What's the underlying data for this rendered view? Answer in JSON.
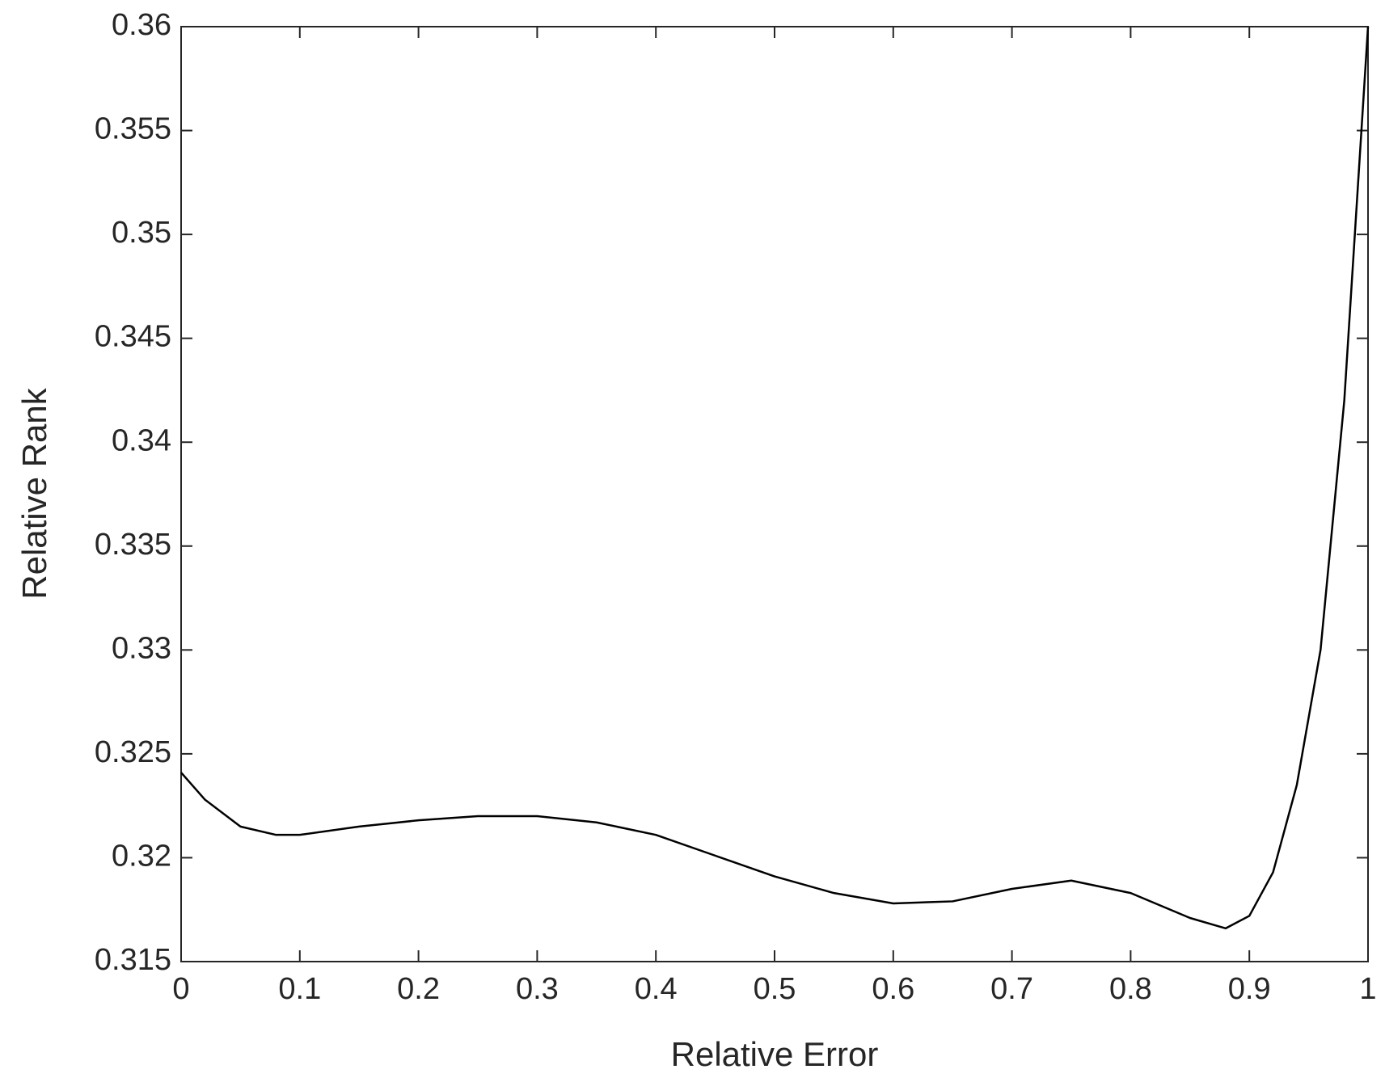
{
  "chart_data": {
    "type": "line",
    "xlabel": "Relative Error",
    "ylabel": "Relative Rank",
    "x": [
      0,
      0.02,
      0.05,
      0.08,
      0.1,
      0.15,
      0.2,
      0.25,
      0.3,
      0.35,
      0.4,
      0.45,
      0.5,
      0.55,
      0.6,
      0.65,
      0.7,
      0.75,
      0.8,
      0.85,
      0.88,
      0.9,
      0.92,
      0.94,
      0.96,
      0.98,
      1.0
    ],
    "series": [
      {
        "color": "#000000",
        "values": [
          0.3241,
          0.3228,
          0.3215,
          0.3211,
          0.3211,
          0.3215,
          0.3218,
          0.322,
          0.322,
          0.3217,
          0.3211,
          0.3201,
          0.3191,
          0.3183,
          0.3178,
          0.3179,
          0.3185,
          0.3189,
          0.3183,
          0.3171,
          0.3166,
          0.3172,
          0.3193,
          0.3235,
          0.33,
          0.342,
          0.36
        ]
      }
    ],
    "xlim": [
      0,
      1
    ],
    "xticks": [
      0,
      0.1,
      0.2,
      0.3,
      0.4,
      0.5,
      0.6,
      0.7,
      0.8,
      0.9,
      1
    ],
    "ylim": [
      0.315,
      0.36
    ],
    "yticks": [
      0.315,
      0.32,
      0.325,
      0.33,
      0.335,
      0.34,
      0.345,
      0.35,
      0.355,
      0.36
    ],
    "grid": false
  }
}
